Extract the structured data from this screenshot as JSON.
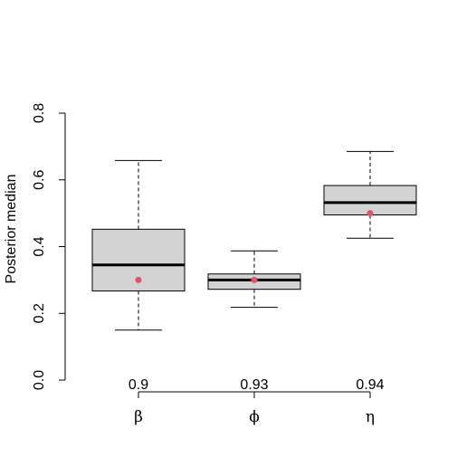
{
  "chart_data": {
    "type": "boxplot",
    "title": "",
    "xlabel": "",
    "ylabel": "Posterior median",
    "ylim": [
      0,
      0.8
    ],
    "yticks": [
      "0.0",
      "0.2",
      "0.4",
      "0.6",
      "0.8"
    ],
    "grid": false,
    "categories": [
      "β",
      "ϕ",
      "η"
    ],
    "top_labels": [
      "0.9",
      "0.93",
      "0.94"
    ],
    "boxes": [
      {
        "min": 0.15,
        "q1": 0.267,
        "median": 0.345,
        "q3": 0.452,
        "max": 0.658,
        "marker": 0.3
      },
      {
        "min": 0.218,
        "q1": 0.272,
        "median": 0.3,
        "q3": 0.318,
        "max": 0.387,
        "marker": 0.3
      },
      {
        "min": 0.425,
        "q1": 0.495,
        "median": 0.532,
        "q3": 0.583,
        "max": 0.685,
        "marker": 0.5
      }
    ],
    "colors": {
      "box_fill": "#d3d3d3",
      "marker": "#df536b",
      "line": "#000000"
    }
  }
}
